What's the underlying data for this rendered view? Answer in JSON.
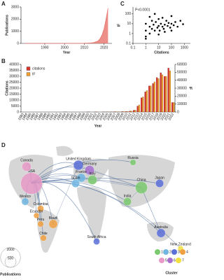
{
  "chart_data": [
    {
      "type": "area",
      "label": "A",
      "xlabel": "Year",
      "ylabel": "Publications",
      "color": "#e8736b",
      "x": [
        1980,
        1990,
        2000,
        2010,
        2013,
        2015,
        2017,
        2018,
        2019,
        2020,
        2021,
        2022
      ],
      "values": [
        0,
        0,
        2,
        10,
        30,
        80,
        200,
        400,
        700,
        1200,
        2000,
        2900
      ],
      "xlim": [
        1978,
        2024
      ],
      "xticks": [
        1990,
        2000,
        2010,
        2020
      ],
      "ylim": [
        0,
        3000
      ],
      "yticks": [
        0,
        1000,
        2000,
        3000
      ]
    },
    {
      "type": "scatter",
      "label": "C",
      "annotation": "P<0.0001",
      "xlabel": "Citations",
      "ylabel": "IF",
      "log_x": true,
      "log_y": true,
      "color": "#000000",
      "x": [
        1,
        1,
        1,
        2,
        2,
        3,
        3,
        4,
        5,
        6,
        8,
        10,
        10,
        12,
        15,
        20,
        20,
        25,
        30,
        40,
        50,
        60,
        80,
        100,
        100,
        150,
        200,
        300,
        500,
        800,
        1,
        2,
        5,
        10,
        30,
        100
      ],
      "values": [
        0.5,
        2,
        10,
        1,
        5,
        3,
        20,
        8,
        2,
        15,
        4,
        6,
        30,
        2,
        10,
        5,
        40,
        3,
        8,
        20,
        6,
        12,
        4,
        10,
        60,
        7,
        15,
        5,
        20,
        9,
        0.3,
        50,
        100,
        0.8,
        1.5,
        2
      ],
      "xlim": [
        0.1,
        3000
      ],
      "xticks": [
        0.1,
        1,
        10,
        100,
        1000
      ],
      "ylim": [
        0.1,
        500
      ],
      "yticks": [
        0.1,
        1,
        10,
        100
      ]
    },
    {
      "type": "bar",
      "label": "B",
      "xlabel": "Year",
      "ylabel": "Citations",
      "y2label": "IF",
      "legend": "top-left",
      "categories": [
        1983,
        1984,
        1985,
        1986,
        1987,
        1988,
        1989,
        1990,
        1991,
        1992,
        1993,
        1994,
        1995,
        1996,
        1997,
        1998,
        1999,
        2000,
        2001,
        2002,
        2003,
        2004,
        2005,
        2006,
        2007,
        2008,
        2009,
        2010,
        2011,
        2012,
        2013,
        2014,
        2015,
        2016,
        2017,
        2018,
        2019,
        2020,
        2021,
        2022
      ],
      "series": [
        {
          "name": "citations",
          "color": "#d9342b",
          "values": [
            0,
            0,
            0,
            0,
            0,
            0,
            0,
            0,
            0,
            0,
            0,
            100,
            0,
            0,
            0,
            0,
            0,
            100,
            0,
            200,
            0,
            100,
            200,
            100,
            300,
            200,
            400,
            500,
            800,
            1500,
            5000,
            12000,
            17000,
            22000,
            24000,
            29000,
            33000,
            30000,
            37000,
            8000
          ]
        },
        {
          "name": "IF",
          "color": "#f0a030",
          "axis": "y2",
          "values": [
            0,
            0,
            0,
            0,
            0,
            0,
            0,
            0,
            0,
            0,
            0,
            100,
            0,
            0,
            0,
            0,
            0,
            200,
            0,
            300,
            0,
            200,
            300,
            200,
            500,
            400,
            600,
            800,
            1200,
            2500,
            9000,
            19000,
            27000,
            33000,
            38000,
            42000,
            47000,
            45000,
            52000,
            12000
          ]
        }
      ],
      "ylim": [
        0,
        40000
      ],
      "yticks": [
        0,
        5000,
        10000,
        15000,
        20000,
        25000,
        30000,
        35000,
        40000
      ],
      "y2lim": [
        0,
        60000
      ],
      "y2ticks": [
        0,
        10000,
        20000,
        30000,
        40000,
        50000,
        60000
      ]
    }
  ],
  "map": {
    "label": "D",
    "cluster_title": "Cluster",
    "size_title": "Publications",
    "size_labels": [
      2000,
      500
    ],
    "clusters": [
      {
        "id": 1,
        "color": "#7bc96f"
      },
      {
        "id": 2,
        "color": "#6fb5e0"
      },
      {
        "id": 3,
        "color": "#5a6fd8"
      },
      {
        "id": 4,
        "color": "#f0a040"
      },
      {
        "id": 5,
        "color": "#e89ac8"
      },
      {
        "id": 6,
        "color": "#a86fd0"
      },
      {
        "id": 7,
        "color": "#f2e040"
      }
    ],
    "nodes": [
      {
        "label": "USA",
        "cluster": 5,
        "publications": 2400
      },
      {
        "label": "Canada",
        "cluster": 5,
        "publications": 300
      },
      {
        "label": "Mexico",
        "cluster": 2,
        "publications": 150
      },
      {
        "label": "Colombia",
        "cluster": 4,
        "publications": 100
      },
      {
        "label": "Ecuador",
        "cluster": 4,
        "publications": 60
      },
      {
        "label": "Peru",
        "cluster": 4,
        "publications": 80
      },
      {
        "label": "Brazil",
        "cluster": 4,
        "publications": 250
      },
      {
        "label": "Chile",
        "cluster": 4,
        "publications": 90
      },
      {
        "label": "United Kingdom",
        "cluster": 3,
        "publications": 350
      },
      {
        "label": "Germany",
        "cluster": 6,
        "publications": 300
      },
      {
        "label": "France",
        "cluster": 2,
        "publications": 250
      },
      {
        "label": "Italy",
        "cluster": 1,
        "publications": 300
      },
      {
        "label": "Spain",
        "cluster": 2,
        "publications": 200
      },
      {
        "label": "Russia",
        "cluster": 1,
        "publications": 80
      },
      {
        "label": "China",
        "cluster": 1,
        "publications": 600
      },
      {
        "label": "Japan",
        "cluster": 3,
        "publications": 200
      },
      {
        "label": "India",
        "cluster": 1,
        "publications": 200
      },
      {
        "label": "South Africa",
        "cluster": 3,
        "publications": 100
      },
      {
        "label": "Australia",
        "cluster": 3,
        "publications": 250
      },
      {
        "label": "New Zealand",
        "cluster": 7,
        "publications": 60
      }
    ]
  }
}
